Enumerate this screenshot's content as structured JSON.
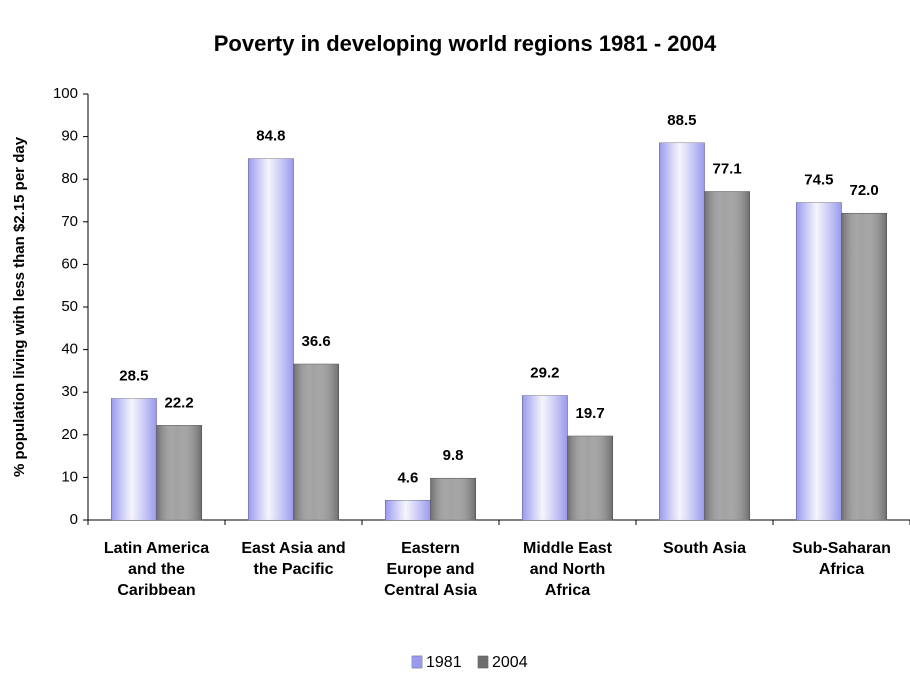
{
  "chart_data": {
    "type": "bar",
    "title": "Poverty in developing world regions 1981 - 2004",
    "y_label": "% population living with less than $2.15 per day",
    "categories": [
      "Latin America and the Caribbean",
      "East Asia and the Pacific",
      "Eastern Europe and Central Asia",
      "Middle East and North Africa",
      "South Asia",
      "Sub-Saharan Africa"
    ],
    "series": [
      {
        "name": "1981",
        "color": "#9999ee",
        "values": [
          28.5,
          84.8,
          4.6,
          29.2,
          88.5,
          74.5
        ],
        "value_labels": [
          "28.5",
          "84.8",
          "4.6",
          "29.2",
          "88.5",
          "74.5"
        ]
      },
      {
        "name": "2004",
        "color": "#6e6e6e",
        "values": [
          22.2,
          36.6,
          9.8,
          19.7,
          77.1,
          72.0
        ],
        "value_labels": [
          "22.2",
          "36.6",
          "9.8",
          "19.7",
          "77.1",
          "72.0"
        ]
      }
    ],
    "ylim": [
      0,
      100
    ],
    "yticks": [
      0,
      10,
      20,
      30,
      40,
      50,
      60,
      70,
      80,
      90,
      100
    ],
    "grid": false,
    "legend": "bottom"
  }
}
